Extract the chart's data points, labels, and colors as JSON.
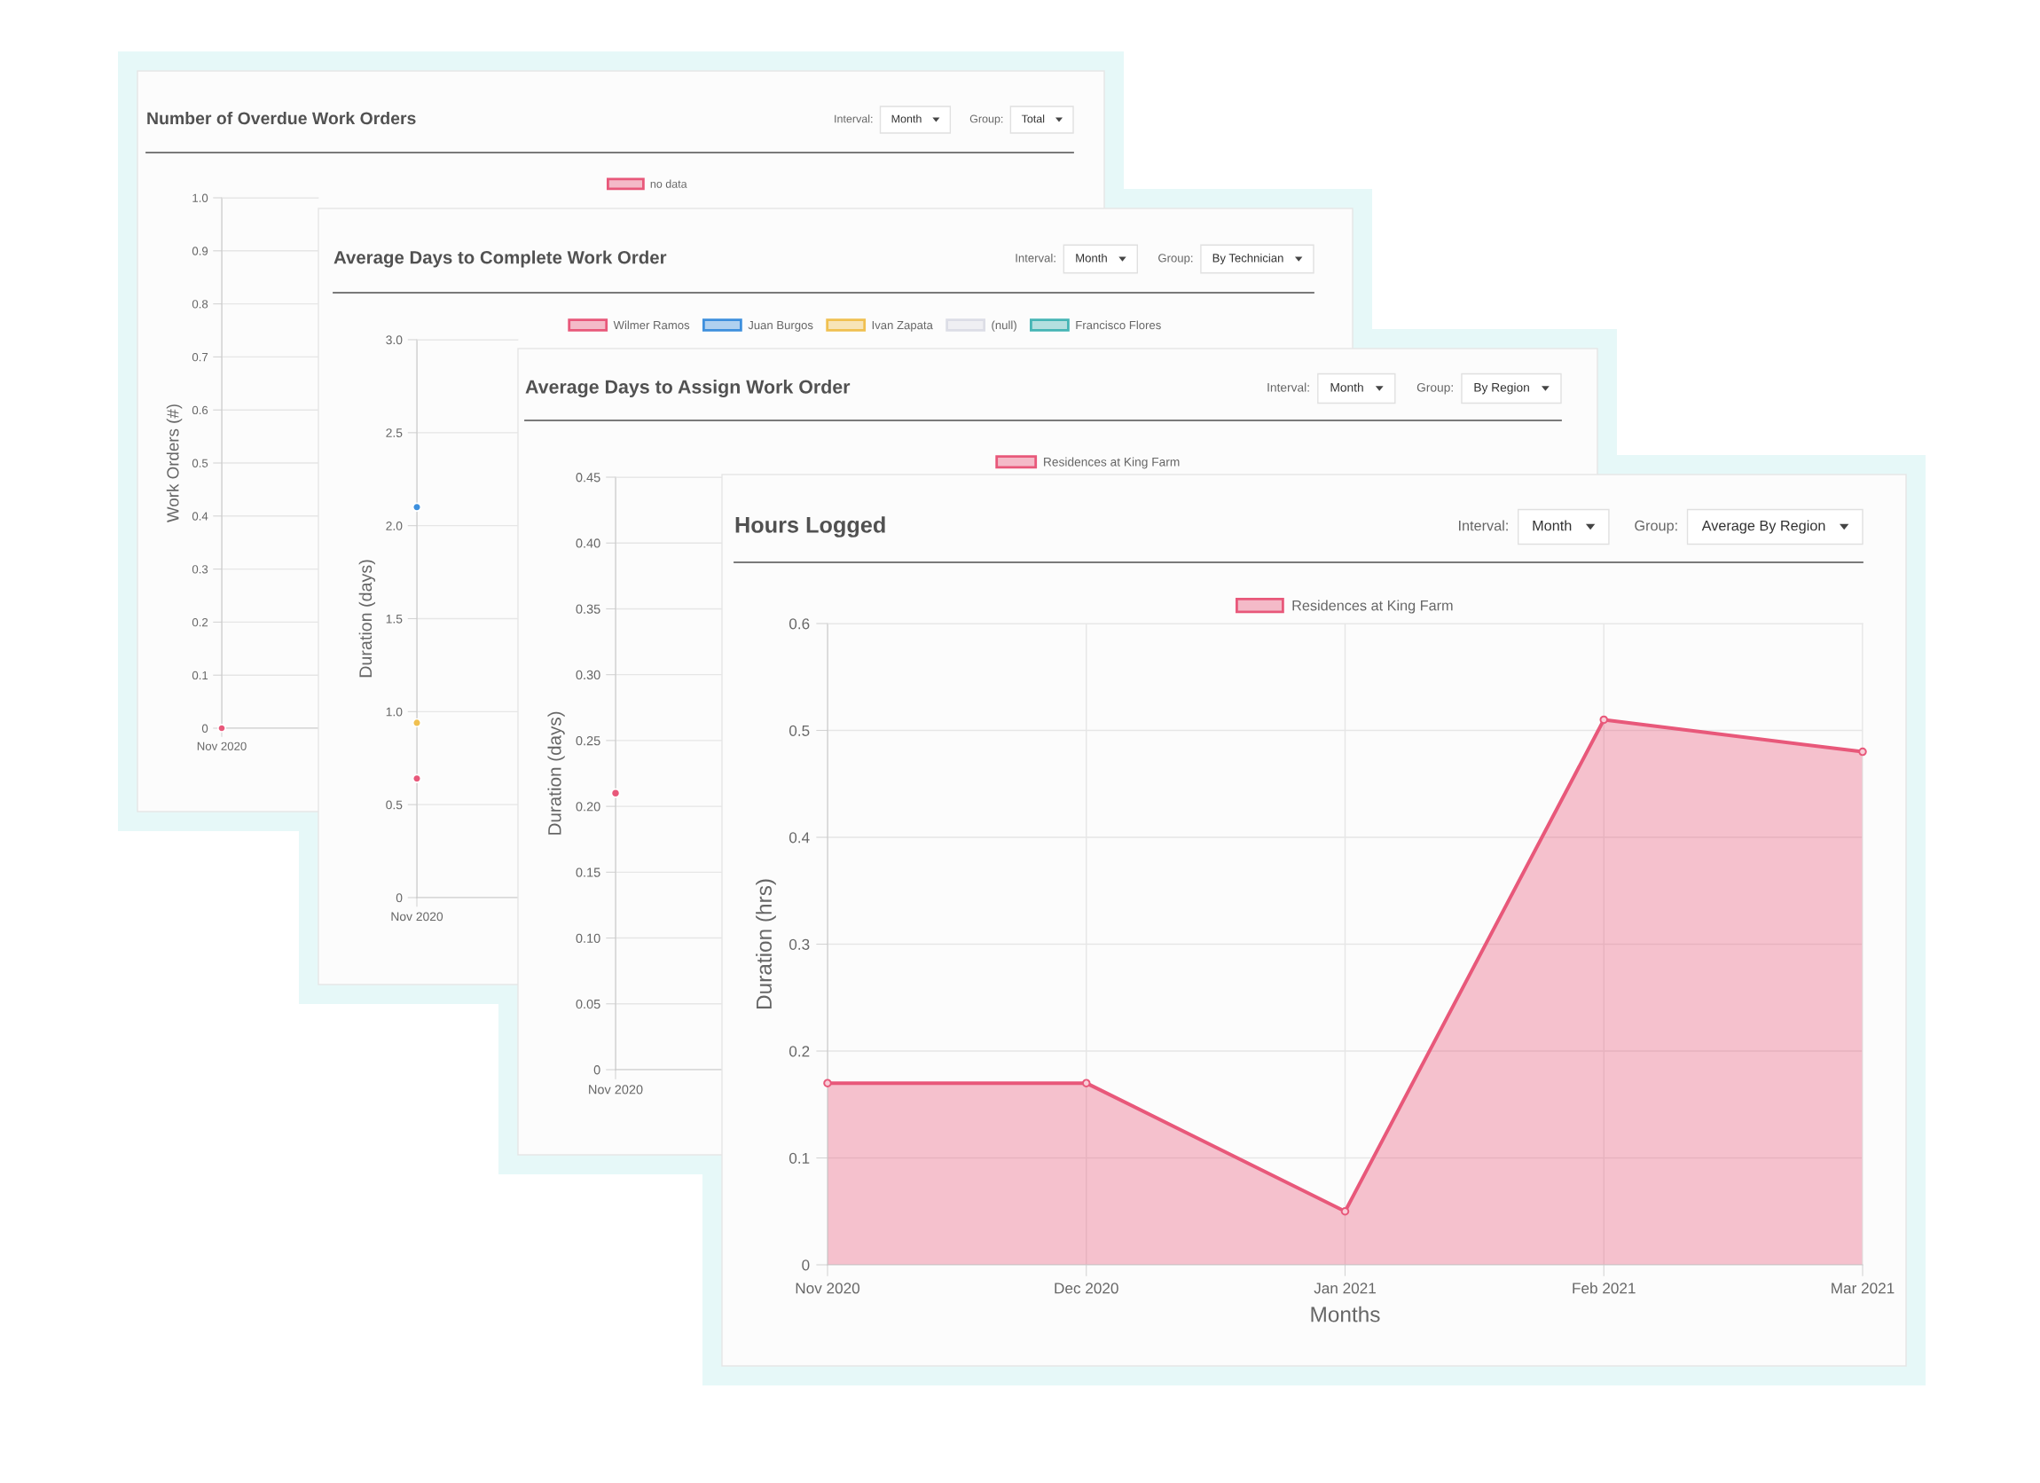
{
  "chart_data": [
    {
      "type": "scatter",
      "title": "Number of Overdue Work Orders",
      "ylabel": "Work Orders (#)",
      "categories": [
        "Nov 2020"
      ],
      "series": [
        {
          "name": "no data",
          "color": "#e8587a",
          "values": [
            0
          ]
        }
      ],
      "ylim": [
        0,
        1
      ],
      "yticks": [
        0,
        0.1,
        0.2,
        0.3,
        0.4,
        0.5,
        0.6,
        0.7,
        0.8,
        0.9,
        {
          "value": 1,
          "label": "1.0"
        }
      ],
      "grid": true,
      "legend": "top",
      "marker": "circle",
      "annotations": [
        "Interval:",
        "Month",
        "Group:",
        "Total"
      ]
    },
    {
      "type": "scatter",
      "title": "Average Days to Complete Work Order",
      "ylabel": "Duration (days)",
      "categories": [
        "Nov 2020"
      ],
      "series": [
        {
          "name": "Wilmer Ramos",
          "color": "#e8587a",
          "values": [
            0.64
          ]
        },
        {
          "name": "Juan Burgos",
          "color": "#3d8fdd",
          "values": [
            2.1
          ]
        },
        {
          "name": "Ivan Zapata",
          "color": "#f0c050",
          "values": [
            0.94
          ]
        },
        {
          "name": "(null)",
          "color": "#dcdde6",
          "values": [
            null
          ]
        },
        {
          "name": "Francisco Flores",
          "color": "#45b5b5",
          "values": [
            null
          ]
        }
      ],
      "ylim": [
        0,
        3
      ],
      "yticks": [
        0,
        0.5,
        {
          "value": 1,
          "label": "1.0"
        },
        1.5,
        {
          "value": 2,
          "label": "2.0"
        },
        2.5,
        {
          "value": 3,
          "label": "3.0"
        }
      ],
      "grid": true,
      "legend": "top",
      "marker": "circle",
      "annotations": [
        "Interval:",
        "Month",
        "Group:",
        "By Technician"
      ]
    },
    {
      "type": "scatter",
      "title": "Average Days to Assign Work Order",
      "ylabel": "Duration (days)",
      "categories": [
        "Nov 2020"
      ],
      "series": [
        {
          "name": "Residences at King Farm",
          "color": "#e8587a",
          "values": [
            0.21
          ]
        }
      ],
      "ylim": [
        0,
        0.45
      ],
      "yticks": [
        0,
        0.05,
        {
          "value": 0.1,
          "label": "0.10"
        },
        0.15,
        {
          "value": 0.2,
          "label": "0.20"
        },
        0.25,
        {
          "value": 0.3,
          "label": "0.30"
        },
        0.35,
        {
          "value": 0.4,
          "label": "0.40"
        },
        0.45
      ],
      "grid": true,
      "legend": "top",
      "marker": "circle",
      "annotations": [
        "Interval:",
        "Month",
        "Group:",
        "By Region"
      ]
    },
    {
      "type": "area",
      "title": "Hours Logged",
      "ylabel": "Duration (hrs)",
      "xlabel": "Months",
      "categories": [
        "Nov 2020",
        "Dec 2020",
        "Jan 2021",
        "Feb 2021",
        "Mar 2021"
      ],
      "series": [
        {
          "name": "Residences at King Farm",
          "color": "#e8587a",
          "values": [
            0.17,
            0.17,
            0.05,
            0.51,
            0.48
          ]
        }
      ],
      "ylim": [
        0,
        0.6
      ],
      "yticks": [
        0,
        0.1,
        0.2,
        0.3,
        0.4,
        0.5,
        0.6
      ],
      "grid": true,
      "legend": "top",
      "marker": "circle",
      "line_style": "solid",
      "annotations": [
        "Interval:",
        "Month",
        "Group:",
        "Average By Region"
      ]
    }
  ]
}
